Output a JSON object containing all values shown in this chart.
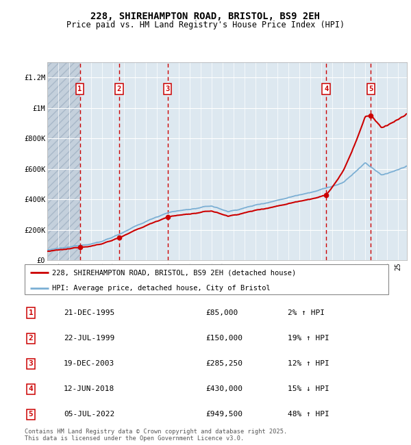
{
  "title": "228, SHIREHAMPTON ROAD, BRISTOL, BS9 2EH",
  "subtitle": "Price paid vs. HM Land Registry's House Price Index (HPI)",
  "ylim": [
    0,
    1300000
  ],
  "yticks": [
    0,
    200000,
    400000,
    600000,
    800000,
    1000000,
    1200000
  ],
  "ytick_labels": [
    "£0",
    "£200K",
    "£400K",
    "£600K",
    "£800K",
    "£1M",
    "£1.2M"
  ],
  "sale_color": "#cc0000",
  "hpi_color": "#7bafd4",
  "bg_color": "#dde8f0",
  "grid_color": "#ffffff",
  "sale_dates_num": [
    1995.97,
    1999.55,
    2003.97,
    2018.44,
    2022.51
  ],
  "sale_prices": [
    85000,
    150000,
    285250,
    430000,
    949500
  ],
  "sale_labels": [
    "1",
    "2",
    "3",
    "4",
    "5"
  ],
  "table_data": [
    [
      "1",
      "21-DEC-1995",
      "£85,000",
      "2% ↑ HPI"
    ],
    [
      "2",
      "22-JUL-1999",
      "£150,000",
      "19% ↑ HPI"
    ],
    [
      "3",
      "19-DEC-2003",
      "£285,250",
      "12% ↑ HPI"
    ],
    [
      "4",
      "12-JUN-2018",
      "£430,000",
      "15% ↓ HPI"
    ],
    [
      "5",
      "05-JUL-2022",
      "£949,500",
      "48% ↑ HPI"
    ]
  ],
  "legend_entries": [
    "228, SHIREHAMPTON ROAD, BRISTOL, BS9 2EH (detached house)",
    "HPI: Average price, detached house, City of Bristol"
  ],
  "footnote": "Contains HM Land Registry data © Crown copyright and database right 2025.\nThis data is licensed under the Open Government Licence v3.0.",
  "xmin": 1993.0,
  "xmax": 2025.8
}
